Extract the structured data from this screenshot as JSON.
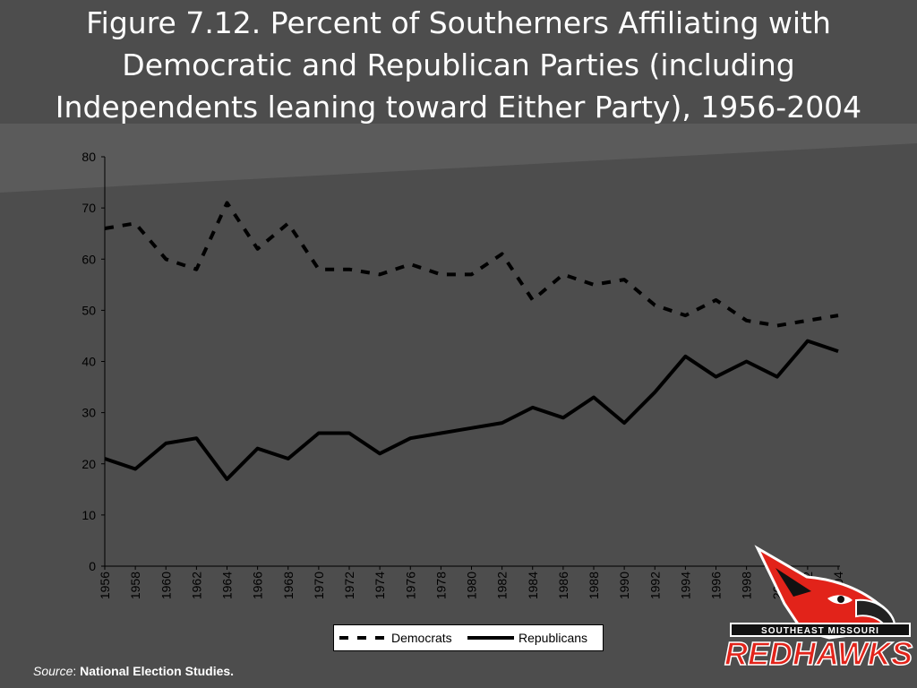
{
  "title_lines": [
    "Figure 7.12. Percent of Southerners Affiliating with",
    "Democratic and Republican Parties (including",
    "Independents leaning toward Either Party), 1956-2004"
  ],
  "source": {
    "label": "Source",
    "separator": ": ",
    "text": "National Election Studies."
  },
  "logo": {
    "top_text": "SOUTHEAST MISSOURI",
    "main_text": "REDHAWKS",
    "colors": {
      "red": "#e2231a",
      "black": "#111111",
      "white": "#ffffff"
    }
  },
  "chart_data": {
    "type": "line",
    "title": "",
    "xlabel": "",
    "ylabel": "",
    "ylim": [
      0,
      80
    ],
    "yticks": [
      0,
      10,
      20,
      30,
      40,
      50,
      60,
      70,
      80
    ],
    "categories": [
      "1956",
      "1958",
      "1960",
      "1962",
      "1964",
      "1966",
      "1968",
      "1970",
      "1972",
      "1974",
      "1976",
      "1978",
      "1980",
      "1982",
      "1984",
      "1986",
      "1988",
      "1990",
      "1992",
      "1994",
      "1996",
      "1998",
      "2000",
      "2002",
      "2004"
    ],
    "grid": false,
    "legend_position": "bottom",
    "series": [
      {
        "name": "Democrats",
        "style": "dashed",
        "color": "#000000",
        "values": [
          66,
          67,
          60,
          58,
          71,
          62,
          67,
          58,
          58,
          57,
          59,
          57,
          57,
          61,
          52,
          57,
          55,
          56,
          51,
          49,
          52,
          48,
          47,
          48,
          49
        ]
      },
      {
        "name": "Republicans",
        "style": "solid",
        "color": "#000000",
        "values": [
          21,
          19,
          24,
          25,
          17,
          23,
          21,
          26,
          26,
          22,
          25,
          26,
          27,
          28,
          31,
          29,
          33,
          28,
          34,
          41,
          37,
          40,
          37,
          44,
          42
        ]
      }
    ]
  }
}
